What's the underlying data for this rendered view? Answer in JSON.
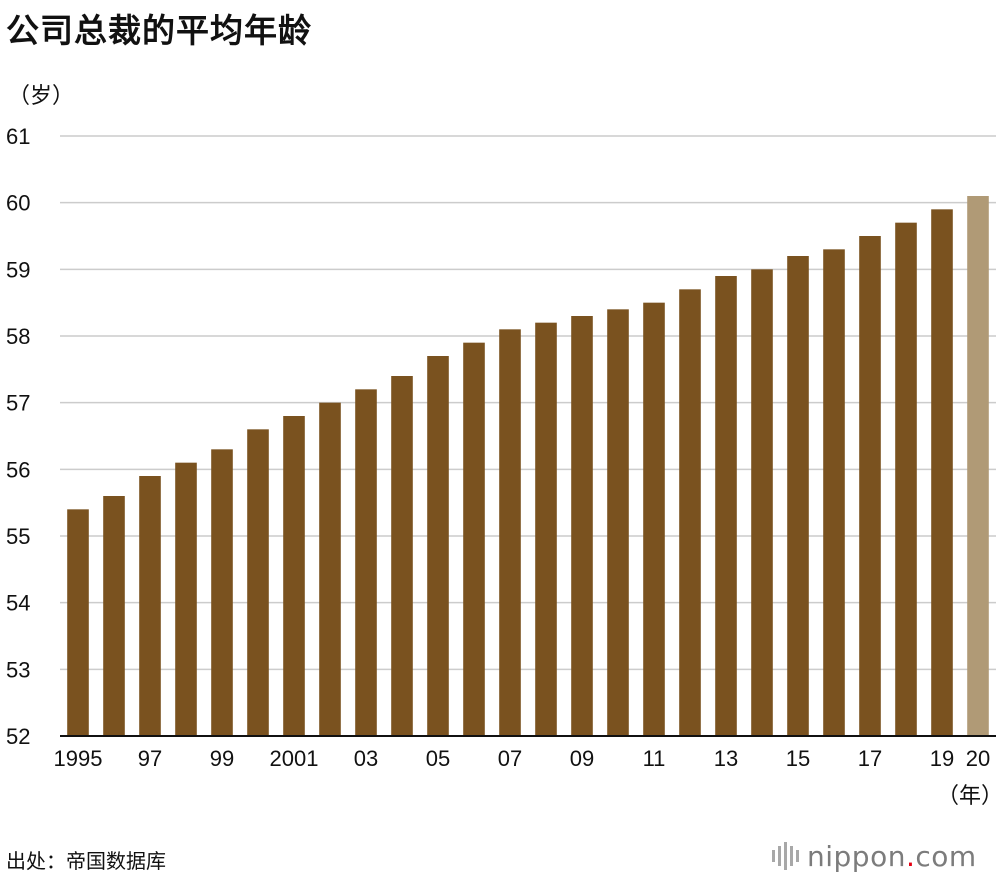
{
  "title": "公司总裁的平均年龄",
  "y_unit": "（岁）",
  "x_unit": "（年）",
  "source": "出处：帝国数据库",
  "brand": {
    "name": "nippon",
    "dot": ".",
    "suffix": "com"
  },
  "colors": {
    "bar": "#7a521f",
    "highlight": "#b09a76",
    "grid": "#cccccc",
    "axis": "#111111"
  },
  "chart_data": {
    "type": "bar",
    "title": "公司总裁的平均年龄",
    "ylabel": "（岁）",
    "xlabel": "（年）",
    "ylim": [
      52,
      61
    ],
    "yticks": [
      52,
      53,
      54,
      55,
      56,
      57,
      58,
      59,
      60,
      61
    ],
    "grid": true,
    "categories": [
      "1995",
      "1996",
      "1997",
      "1998",
      "1999",
      "2000",
      "2001",
      "2002",
      "2003",
      "2004",
      "2005",
      "2006",
      "2007",
      "2008",
      "2009",
      "2010",
      "2011",
      "2012",
      "2013",
      "2014",
      "2015",
      "2016",
      "2017",
      "2018",
      "2019",
      "2020"
    ],
    "tick_labels": [
      "1995",
      "",
      "97",
      "",
      "99",
      "",
      "2001",
      "",
      "03",
      "",
      "05",
      "",
      "07",
      "",
      "09",
      "",
      "11",
      "",
      "13",
      "",
      "15",
      "",
      "17",
      "",
      "19",
      "20"
    ],
    "values": [
      55.4,
      55.6,
      55.9,
      56.1,
      56.3,
      56.6,
      56.8,
      57.0,
      57.2,
      57.4,
      57.7,
      57.9,
      58.1,
      58.2,
      58.3,
      58.4,
      58.5,
      58.7,
      58.9,
      59.0,
      59.2,
      59.3,
      59.5,
      59.7,
      59.9,
      60.1
    ],
    "highlight_index": 25
  }
}
